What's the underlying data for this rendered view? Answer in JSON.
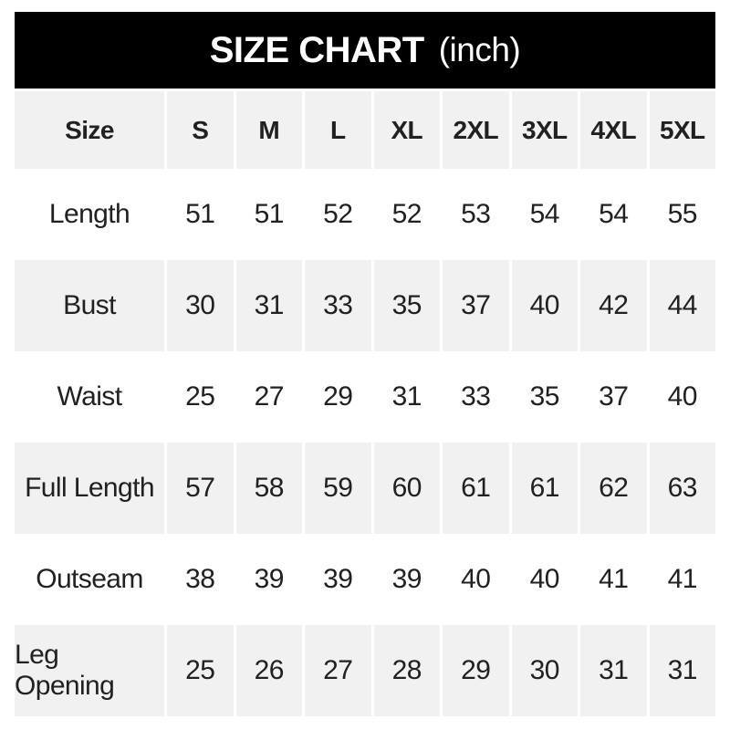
{
  "title": {
    "main": "SIZE CHART",
    "unit": "(inch)"
  },
  "colors": {
    "bar_background": "#000000",
    "bar_text": "#ffffff",
    "banded_row_background": "#f1f1f2",
    "table_text": "#212121"
  },
  "chart_data": {
    "type": "table",
    "title": "SIZE CHART (inch)",
    "unit": "inch",
    "columns": [
      "Size",
      "S",
      "M",
      "L",
      "XL",
      "2XL",
      "3XL",
      "4XL",
      "5XL"
    ],
    "rows": [
      {
        "label": "Length",
        "values": [
          "51",
          "51",
          "52",
          "52",
          "53",
          "54",
          "54",
          "55"
        ]
      },
      {
        "label": "Bust",
        "values": [
          "30",
          "31",
          "33",
          "35",
          "37",
          "40",
          "42",
          "44"
        ]
      },
      {
        "label": "Waist",
        "values": [
          "25",
          "27",
          "29",
          "31",
          "33",
          "35",
          "37",
          "40"
        ]
      },
      {
        "label": "Full Length",
        "values": [
          "57",
          "58",
          "59",
          "60",
          "61",
          "61",
          "62",
          "63"
        ]
      },
      {
        "label": "Outseam",
        "values": [
          "38",
          "39",
          "39",
          "39",
          "40",
          "40",
          "41",
          "41"
        ]
      },
      {
        "label": "Leg Opening",
        "values": [
          "25",
          "26",
          "27",
          "28",
          "29",
          "30",
          "31",
          "31"
        ]
      }
    ],
    "layout": {
      "banded_rows": [
        "header",
        "Bust",
        "Full Length",
        "Leg Opening"
      ],
      "grid": "white gaps between columns on banded rows only"
    }
  }
}
